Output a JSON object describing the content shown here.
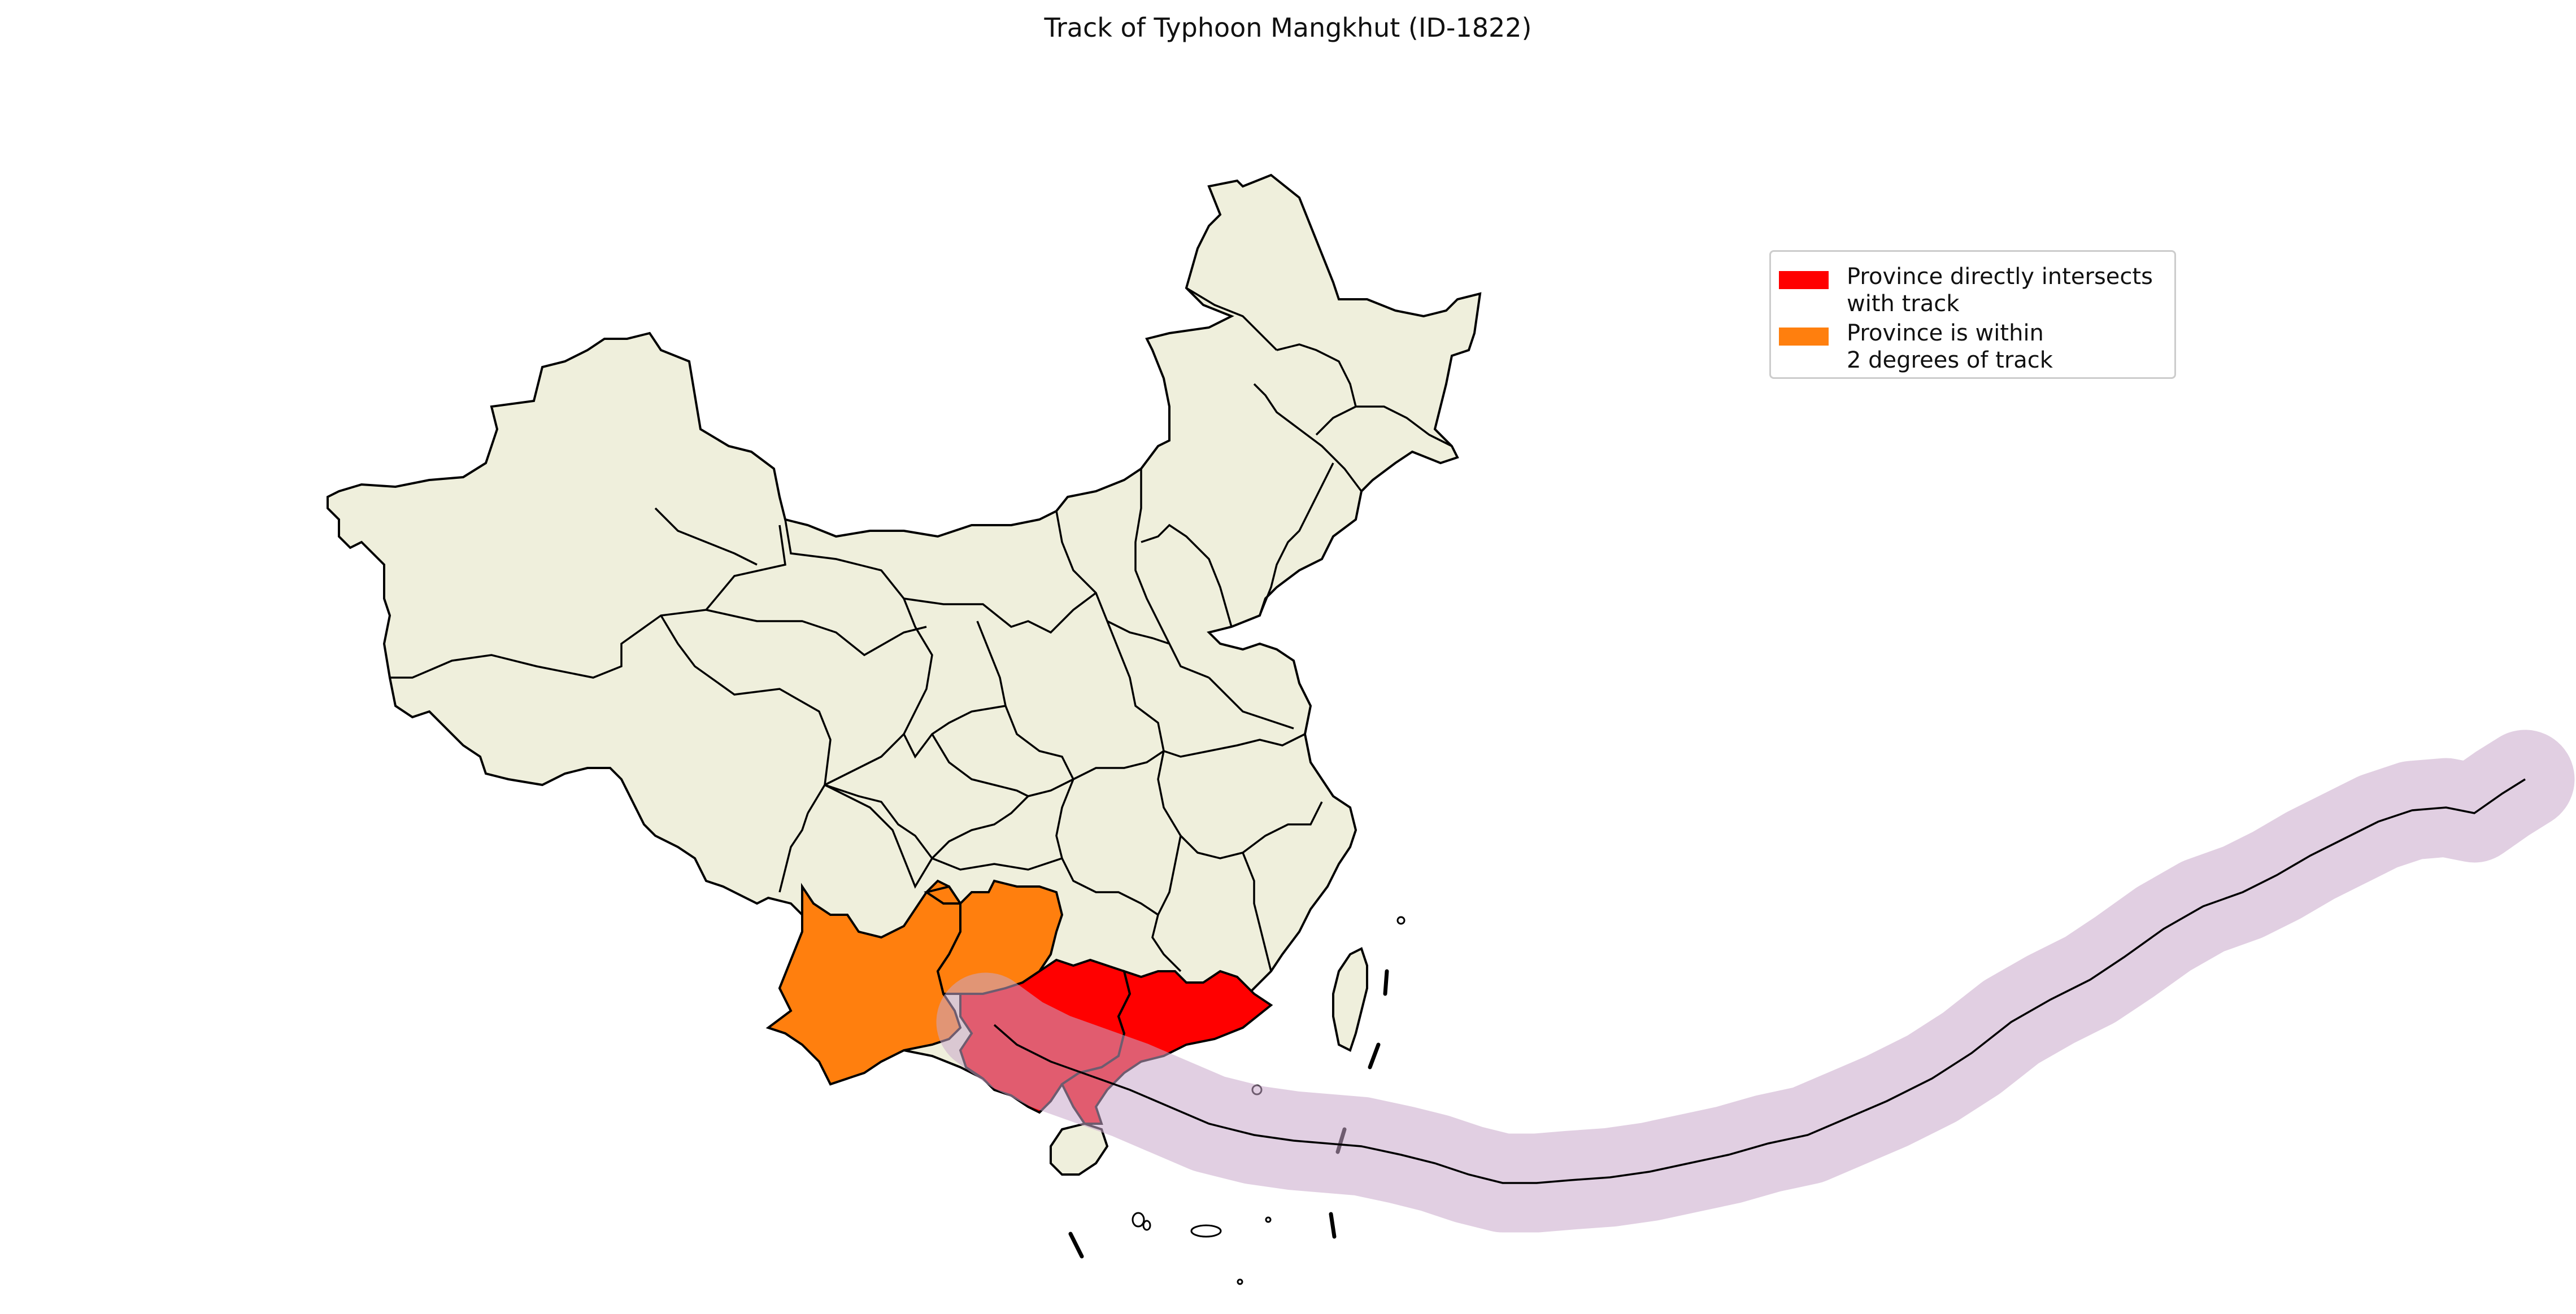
{
  "title": "Track of Typhoon Mangkhut (ID-1822)",
  "legend": {
    "items": [
      {
        "label": "Province directly intersects\nwith track",
        "color": "#ff0000"
      },
      {
        "label": "Province is within\n2 degrees of track",
        "color": "#ff7f0e"
      }
    ]
  },
  "colors": {
    "land": "#efefdc",
    "border": "#000000",
    "intersect": "#ff0000",
    "within": "#ff7f0e",
    "buffer": "#d8c1db",
    "track": "#000000"
  }
}
